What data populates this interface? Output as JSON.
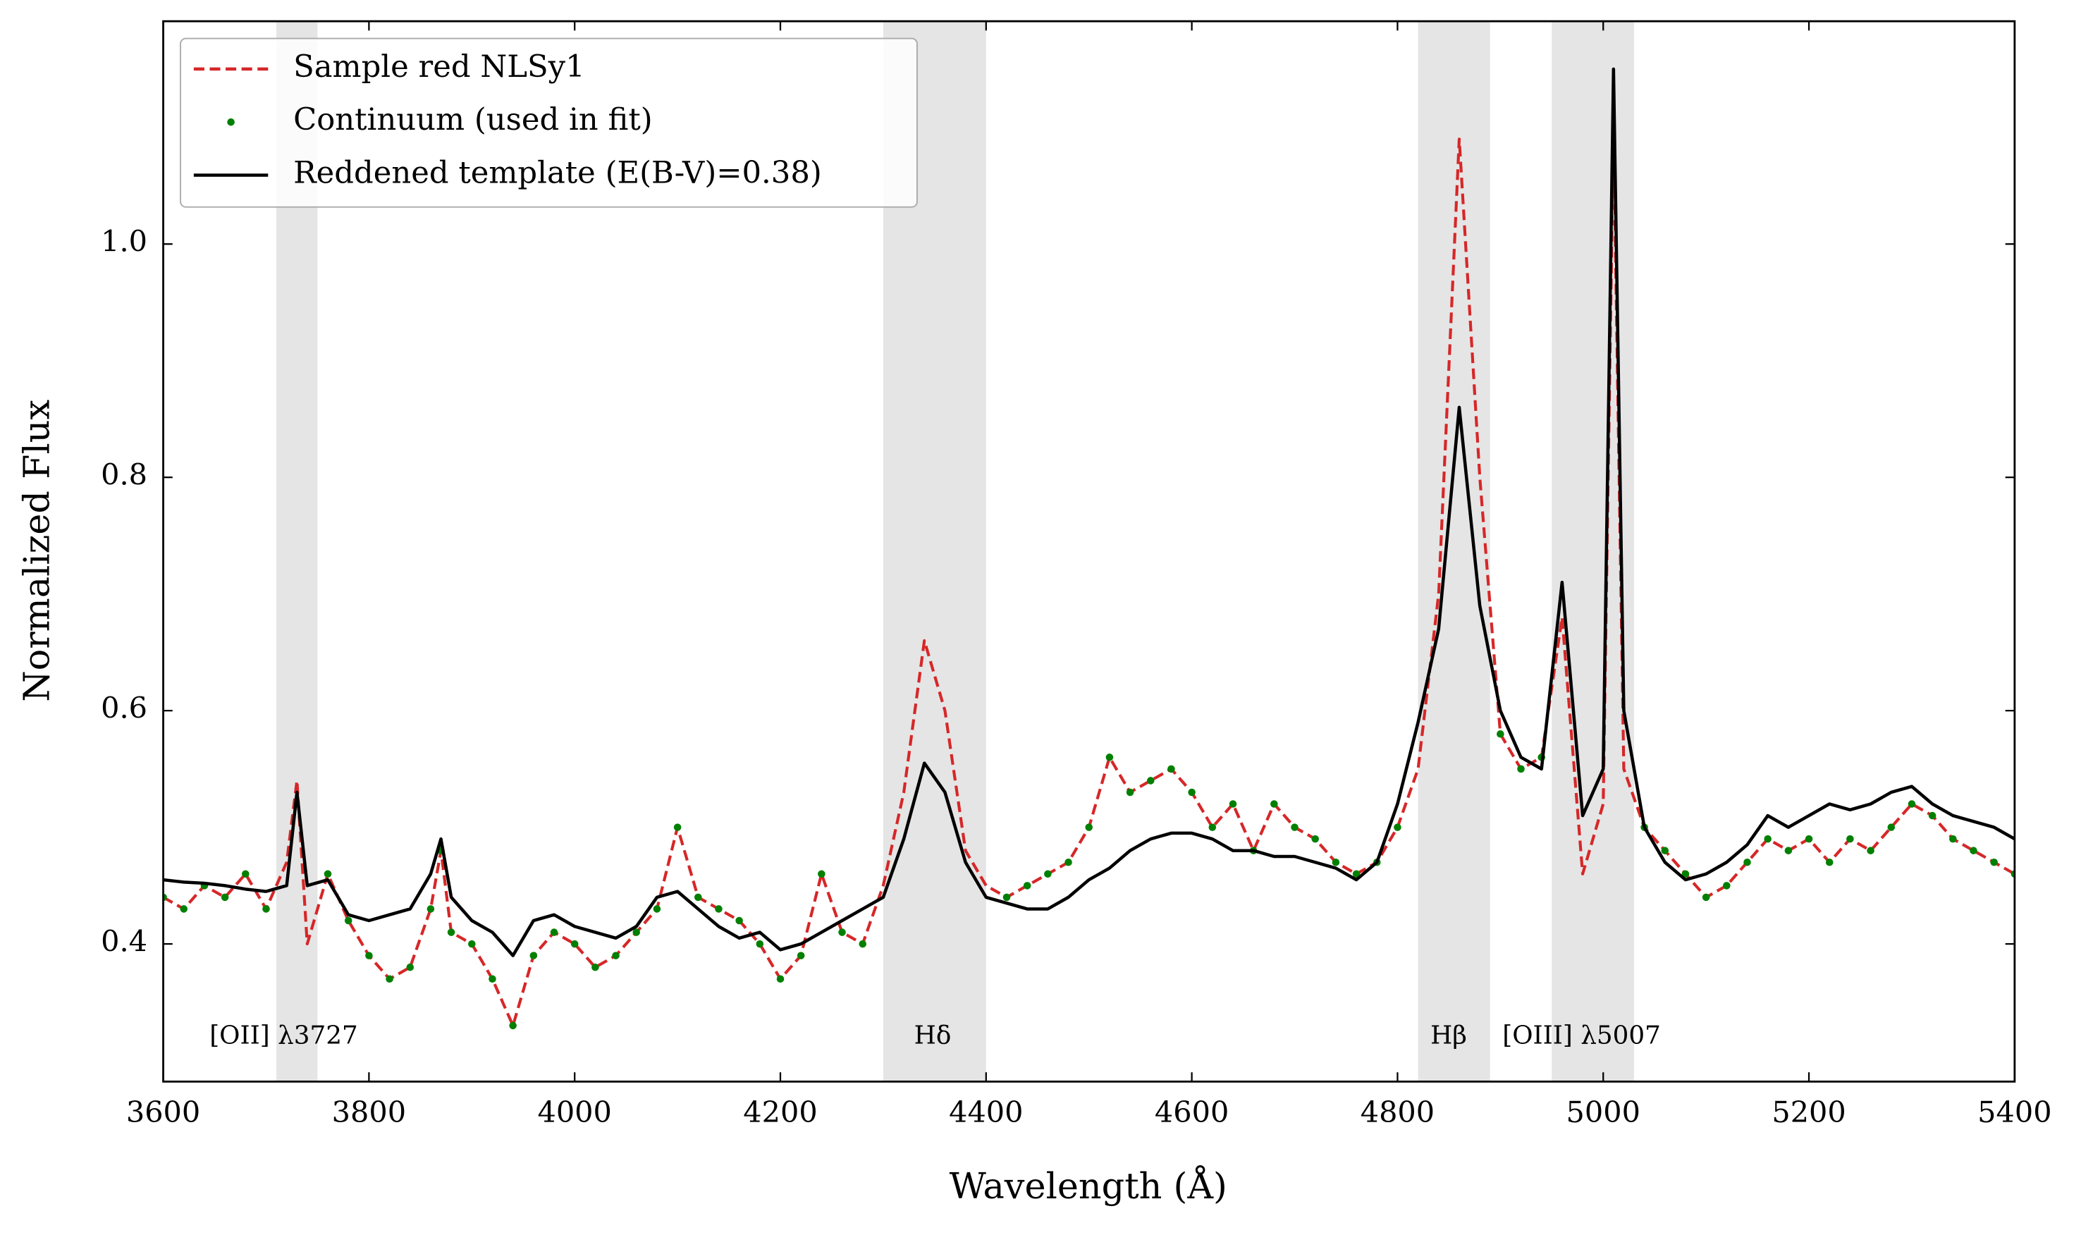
{
  "chart_data": {
    "type": "line",
    "xlabel": "Wavelength (Å)",
    "ylabel": "Normalized Flux",
    "xlim": [
      3600,
      5400
    ],
    "ylim": [
      0.282,
      1.191
    ],
    "xticks": [
      3600,
      3800,
      4000,
      4200,
      4400,
      4600,
      4800,
      5000,
      5200,
      5400
    ],
    "yticks": [
      0.4,
      0.6,
      0.8,
      {
        "value": 1,
        "label": "1.0"
      }
    ],
    "legend": "upper left",
    "spans": [
      [
        3710,
        3750
      ],
      [
        4300,
        4400
      ],
      [
        4820,
        4890
      ],
      [
        4950,
        5030
      ]
    ],
    "span_color": "#e5e5e5",
    "annotations": [
      {
        "text": "[OII] λ3727",
        "x": 3645,
        "y": 0.32
      },
      {
        "text": "Hδ",
        "x": 4330,
        "y": 0.32
      },
      {
        "text": "Hβ",
        "x": 4832,
        "y": 0.32
      },
      {
        "text": "[OIII] λ5007",
        "x": 4902,
        "y": 0.32
      }
    ],
    "x": [
      3600,
      3620,
      3640,
      3660,
      3680,
      3700,
      3720,
      3730,
      3740,
      3760,
      3780,
      3800,
      3820,
      3840,
      3860,
      3870,
      3880,
      3900,
      3920,
      3940,
      3960,
      3980,
      4000,
      4020,
      4040,
      4060,
      4080,
      4100,
      4120,
      4140,
      4160,
      4180,
      4200,
      4220,
      4240,
      4260,
      4280,
      4300,
      4320,
      4340,
      4360,
      4380,
      4400,
      4420,
      4440,
      4460,
      4480,
      4500,
      4520,
      4540,
      4560,
      4580,
      4600,
      4620,
      4640,
      4660,
      4680,
      4700,
      4720,
      4740,
      4760,
      4780,
      4800,
      4820,
      4840,
      4860,
      4880,
      4900,
      4920,
      4940,
      4960,
      4980,
      5000,
      5010,
      5020,
      5040,
      5060,
      5080,
      5100,
      5120,
      5140,
      5160,
      5180,
      5200,
      5220,
      5240,
      5260,
      5280,
      5300,
      5320,
      5340,
      5360,
      5380,
      5400
    ],
    "series": [
      {
        "name": "Sample red NLSy1",
        "color": "#d62728",
        "style": "dashed",
        "values": [
          0.44,
          0.43,
          0.45,
          0.44,
          0.46,
          0.43,
          0.47,
          0.54,
          0.4,
          0.46,
          0.42,
          0.39,
          0.37,
          0.38,
          0.43,
          0.48,
          0.41,
          0.4,
          0.37,
          0.33,
          0.39,
          0.41,
          0.4,
          0.38,
          0.39,
          0.41,
          0.43,
          0.5,
          0.44,
          0.43,
          0.42,
          0.4,
          0.37,
          0.39,
          0.46,
          0.41,
          0.4,
          0.45,
          0.53,
          0.66,
          0.6,
          0.48,
          0.45,
          0.44,
          0.45,
          0.46,
          0.47,
          0.5,
          0.56,
          0.53,
          0.54,
          0.55,
          0.53,
          0.5,
          0.52,
          0.48,
          0.52,
          0.5,
          0.49,
          0.47,
          0.46,
          0.47,
          0.5,
          0.55,
          0.7,
          1.09,
          0.8,
          0.58,
          0.55,
          0.56,
          0.68,
          0.46,
          0.52,
          1.1,
          0.55,
          0.5,
          0.48,
          0.46,
          0.44,
          0.45,
          0.47,
          0.49,
          0.48,
          0.49,
          0.47,
          0.49,
          0.48,
          0.5,
          0.52,
          0.51,
          0.49,
          0.48,
          0.47,
          0.46
        ]
      },
      {
        "name": "Continuum (used in fit)",
        "color": "#008000",
        "style": "dots",
        "values": [
          0.44,
          0.43,
          0.45,
          0.44,
          0.46,
          0.43,
          null,
          null,
          null,
          0.46,
          0.42,
          0.39,
          0.37,
          0.38,
          0.43,
          0.48,
          0.41,
          0.4,
          0.37,
          0.33,
          0.39,
          0.41,
          0.4,
          0.38,
          0.39,
          0.41,
          0.43,
          0.5,
          0.44,
          0.43,
          0.42,
          0.4,
          0.37,
          0.39,
          0.46,
          0.41,
          0.4,
          null,
          null,
          null,
          null,
          null,
          null,
          0.44,
          0.45,
          0.46,
          0.47,
          0.5,
          0.56,
          0.53,
          0.54,
          0.55,
          0.53,
          0.5,
          0.52,
          0.48,
          0.52,
          0.5,
          0.49,
          0.47,
          0.46,
          0.47,
          0.5,
          null,
          null,
          null,
          null,
          0.58,
          0.55,
          0.56,
          null,
          null,
          null,
          null,
          null,
          0.5,
          0.48,
          0.46,
          0.44,
          0.45,
          0.47,
          0.49,
          0.48,
          0.49,
          0.47,
          0.49,
          0.48,
          0.5,
          0.52,
          0.51,
          0.49,
          0.48,
          0.47,
          0.46
        ]
      },
      {
        "name": "Reddened template (E(B-V)=0.38)",
        "color": "#000000",
        "style": "solid",
        "values": [
          0.455,
          0.453,
          0.452,
          0.45,
          0.447,
          0.445,
          0.45,
          0.53,
          0.45,
          0.455,
          0.425,
          0.42,
          0.425,
          0.43,
          0.46,
          0.49,
          0.44,
          0.42,
          0.41,
          0.39,
          0.42,
          0.425,
          0.415,
          0.41,
          0.405,
          0.415,
          0.44,
          0.445,
          0.43,
          0.415,
          0.405,
          0.41,
          0.395,
          0.4,
          0.41,
          0.42,
          0.43,
          0.44,
          0.49,
          0.555,
          0.53,
          0.47,
          0.44,
          0.435,
          0.43,
          0.43,
          0.44,
          0.455,
          0.465,
          0.48,
          0.49,
          0.495,
          0.495,
          0.49,
          0.48,
          0.48,
          0.475,
          0.475,
          0.47,
          0.465,
          0.455,
          0.47,
          0.52,
          0.59,
          0.67,
          0.86,
          0.69,
          0.6,
          0.56,
          0.55,
          0.71,
          0.51,
          0.55,
          1.15,
          0.6,
          0.5,
          0.47,
          0.455,
          0.46,
          0.47,
          0.485,
          0.51,
          0.5,
          0.51,
          0.52,
          0.515,
          0.52,
          0.53,
          0.535,
          0.52,
          0.51,
          0.505,
          0.5,
          0.49
        ]
      }
    ]
  }
}
